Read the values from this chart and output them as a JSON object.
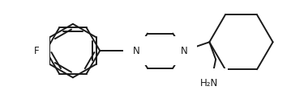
{
  "bg_color": "#ffffff",
  "line_color": "#1a1a1a",
  "line_width": 1.4,
  "font_size_N": 8.5,
  "font_size_F": 8.5,
  "font_size_amine": 8.5,
  "figure_size": [
    3.59,
    1.33
  ],
  "dpi": 100,
  "F_label": "F",
  "N_label": "N",
  "N2_label": "N",
  "amine_label": "H₂N"
}
